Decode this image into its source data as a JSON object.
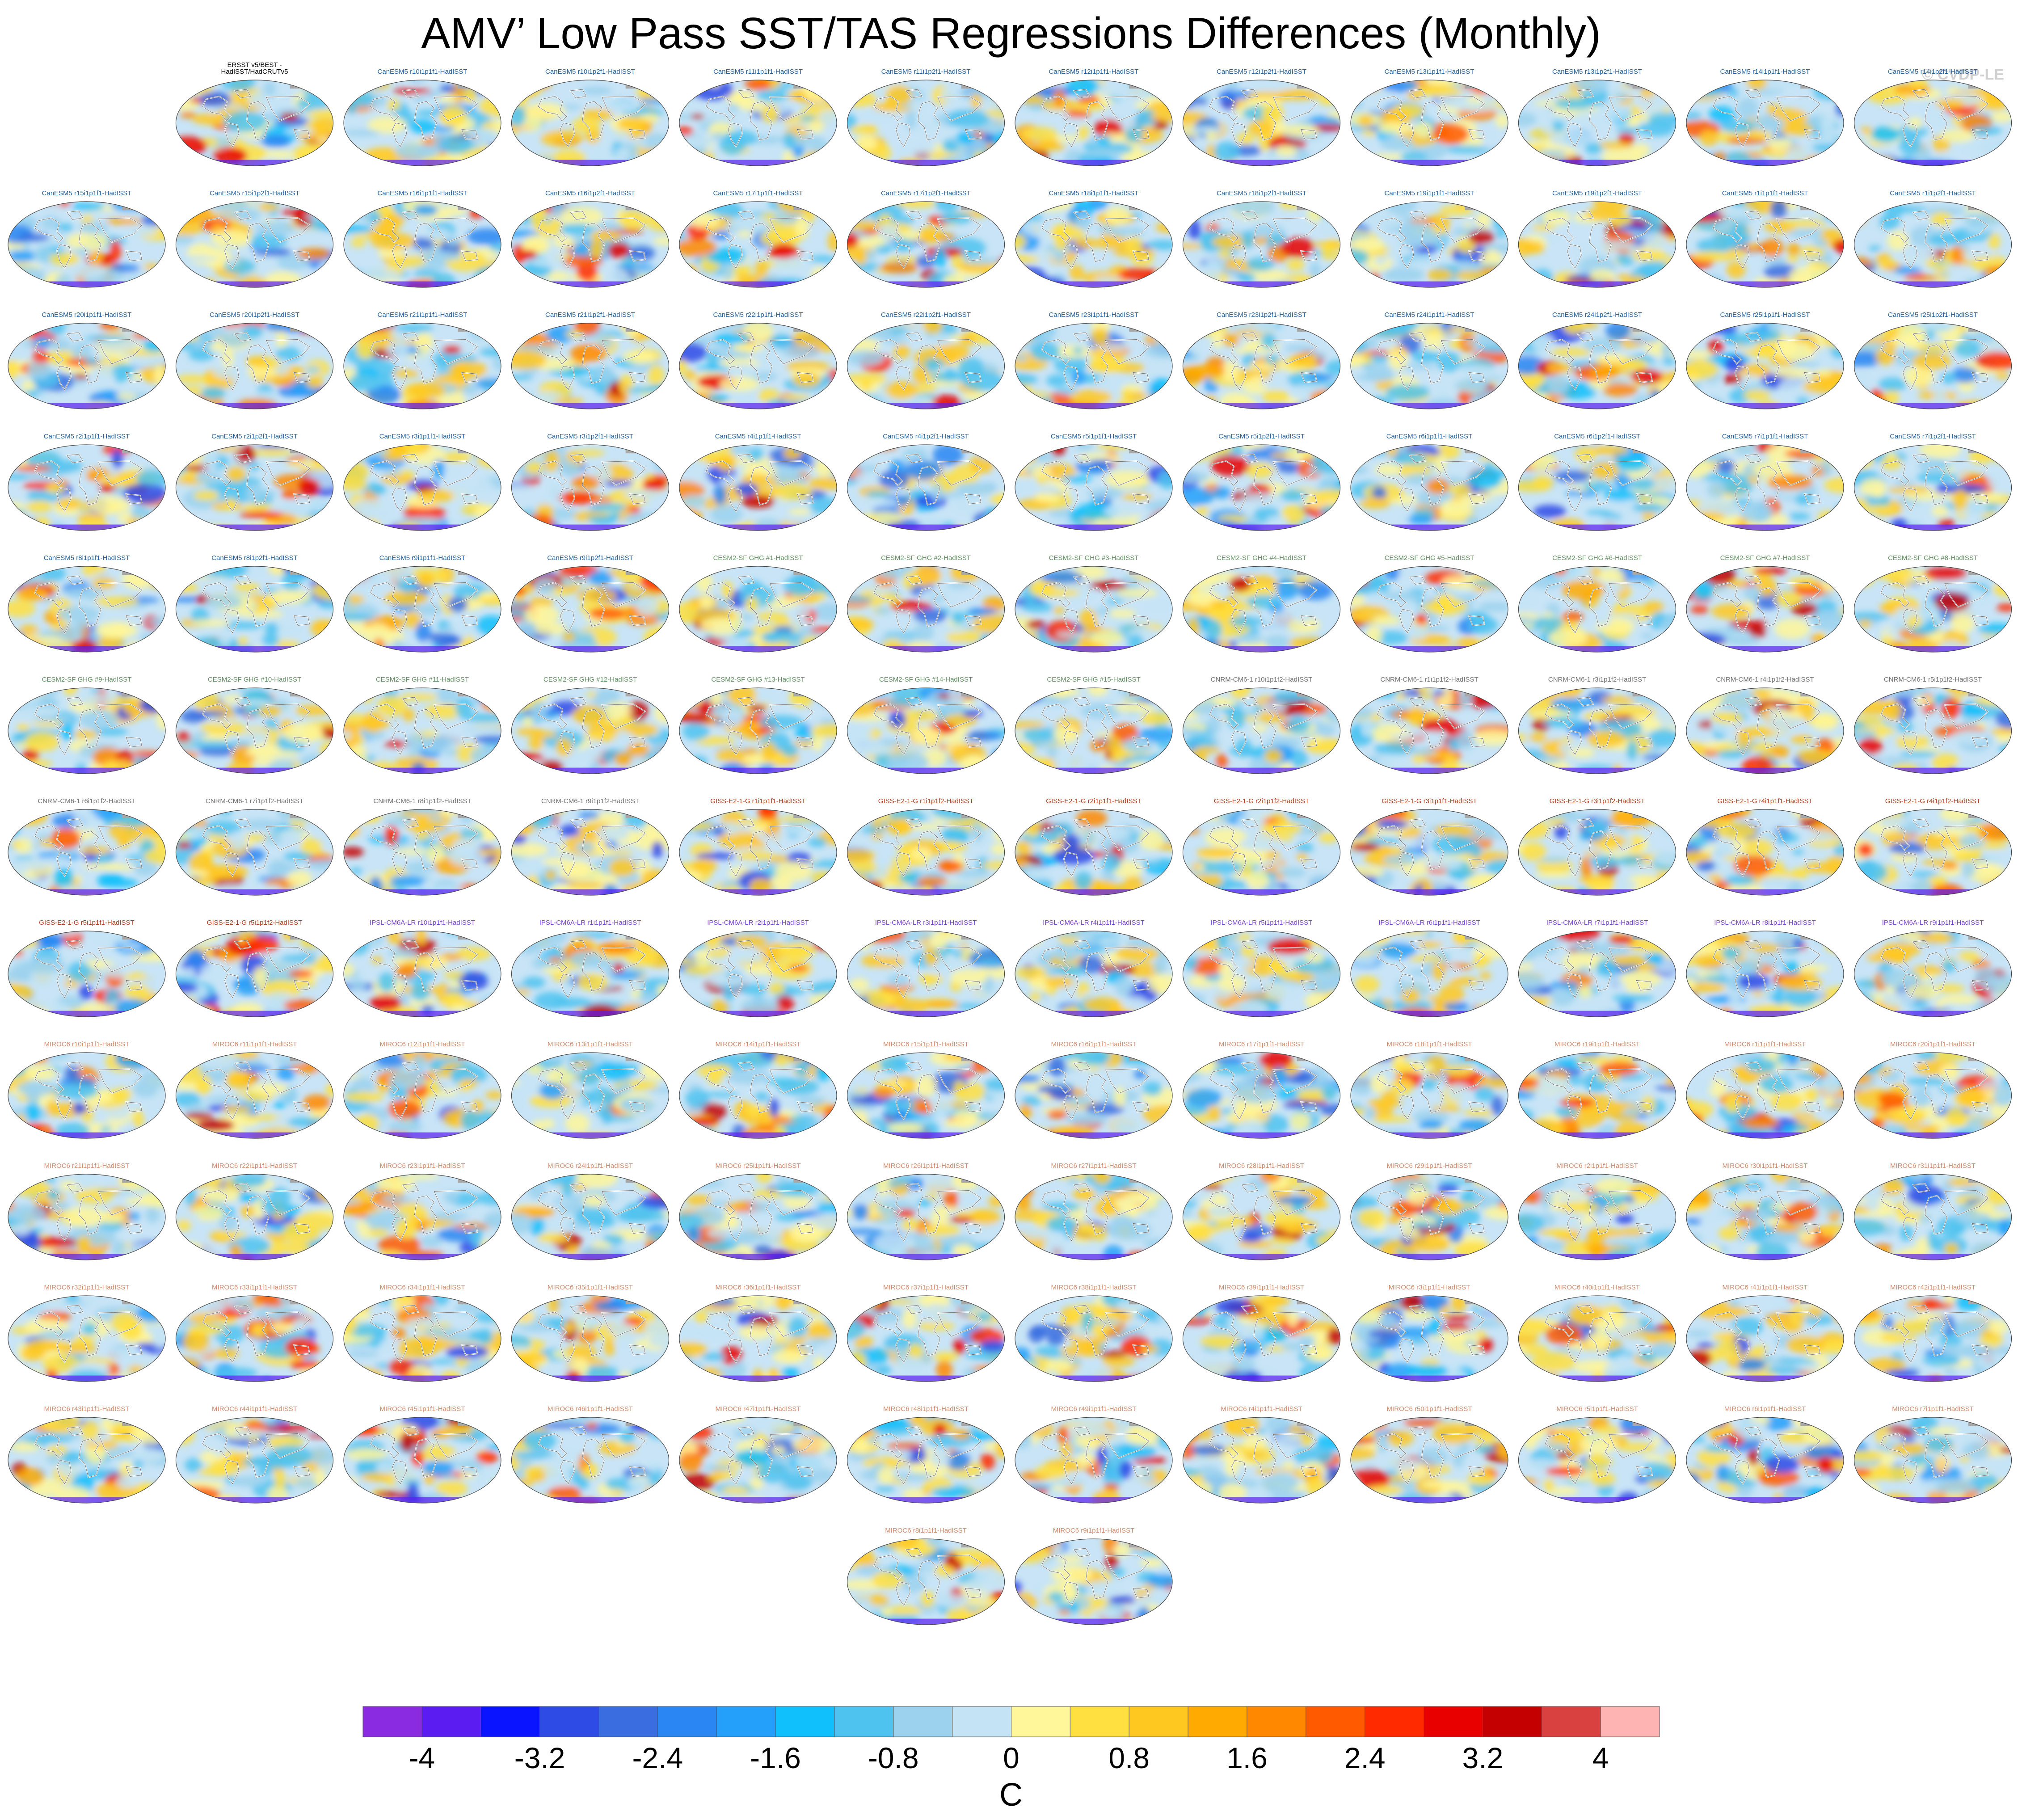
{
  "title": "AMV’ Low Pass SST/TAS Regressions Differences (Monthly)",
  "credit": "© CVDP-LE",
  "chart_data": {
    "type": "heatmap",
    "description_kind": "grid of global map panels",
    "panels": [
      {
        "title": "ERSST v5/BEST -\nHadISST/HadCRUTv5",
        "group": "obs"
      },
      {
        "title": "CanESM5 r10i1p1f1-HadISST",
        "group": "CanESM5"
      },
      {
        "title": "CanESM5 r10i1p2f1-HadISST",
        "group": "CanESM5"
      },
      {
        "title": "CanESM5 r11i1p1f1-HadISST",
        "group": "CanESM5"
      },
      {
        "title": "CanESM5 r11i1p2f1-HadISST",
        "group": "CanESM5"
      },
      {
        "title": "CanESM5 r12i1p1f1-HadISST",
        "group": "CanESM5"
      },
      {
        "title": "CanESM5 r12i1p2f1-HadISST",
        "group": "CanESM5"
      },
      {
        "title": "CanESM5 r13i1p1f1-HadISST",
        "group": "CanESM5"
      },
      {
        "title": "CanESM5 r13i1p2f1-HadISST",
        "group": "CanESM5"
      },
      {
        "title": "CanESM5 r14i1p1f1-HadISST",
        "group": "CanESM5"
      },
      {
        "title": "CanESM5 r14i1p2f1-HadISST",
        "group": "CanESM5"
      },
      {
        "title": "CanESM5 r15i1p1f1-HadISST",
        "group": "CanESM5"
      },
      {
        "title": "CanESM5 r15i1p2f1-HadISST",
        "group": "CanESM5"
      },
      {
        "title": "CanESM5 r16i1p1f1-HadISST",
        "group": "CanESM5"
      },
      {
        "title": "CanESM5 r16i1p2f1-HadISST",
        "group": "CanESM5"
      },
      {
        "title": "CanESM5 r17i1p1f1-HadISST",
        "group": "CanESM5"
      },
      {
        "title": "CanESM5 r17i1p2f1-HadISST",
        "group": "CanESM5"
      },
      {
        "title": "CanESM5 r18i1p1f1-HadISST",
        "group": "CanESM5"
      },
      {
        "title": "CanESM5 r18i1p2f1-HadISST",
        "group": "CanESM5"
      },
      {
        "title": "CanESM5 r19i1p1f1-HadISST",
        "group": "CanESM5"
      },
      {
        "title": "CanESM5 r19i1p2f1-HadISST",
        "group": "CanESM5"
      },
      {
        "title": "CanESM5 r1i1p1f1-HadISST",
        "group": "CanESM5"
      },
      {
        "title": "CanESM5 r1i1p2f1-HadISST",
        "group": "CanESM5"
      },
      {
        "title": "CanESM5 r20i1p1f1-HadISST",
        "group": "CanESM5"
      },
      {
        "title": "CanESM5 r20i1p2f1-HadISST",
        "group": "CanESM5"
      },
      {
        "title": "CanESM5 r21i1p1f1-HadISST",
        "group": "CanESM5"
      },
      {
        "title": "CanESM5 r21i1p2f1-HadISST",
        "group": "CanESM5"
      },
      {
        "title": "CanESM5 r22i1p1f1-HadISST",
        "group": "CanESM5"
      },
      {
        "title": "CanESM5 r22i1p2f1-HadISST",
        "group": "CanESM5"
      },
      {
        "title": "CanESM5 r23i1p1f1-HadISST",
        "group": "CanESM5"
      },
      {
        "title": "CanESM5 r23i1p2f1-HadISST",
        "group": "CanESM5"
      },
      {
        "title": "CanESM5 r24i1p1f1-HadISST",
        "group": "CanESM5"
      },
      {
        "title": "CanESM5 r24i1p2f1-HadISST",
        "group": "CanESM5"
      },
      {
        "title": "CanESM5 r25i1p1f1-HadISST",
        "group": "CanESM5"
      },
      {
        "title": "CanESM5 r25i1p2f1-HadISST",
        "group": "CanESM5"
      },
      {
        "title": "CanESM5 r2i1p1f1-HadISST",
        "group": "CanESM5"
      },
      {
        "title": "CanESM5 r2i1p2f1-HadISST",
        "group": "CanESM5"
      },
      {
        "title": "CanESM5 r3i1p1f1-HadISST",
        "group": "CanESM5"
      },
      {
        "title": "CanESM5 r3i1p2f1-HadISST",
        "group": "CanESM5"
      },
      {
        "title": "CanESM5 r4i1p1f1-HadISST",
        "group": "CanESM5"
      },
      {
        "title": "CanESM5 r4i1p2f1-HadISST",
        "group": "CanESM5"
      },
      {
        "title": "CanESM5 r5i1p1f1-HadISST",
        "group": "CanESM5"
      },
      {
        "title": "CanESM5 r5i1p2f1-HadISST",
        "group": "CanESM5"
      },
      {
        "title": "CanESM5 r6i1p1f1-HadISST",
        "group": "CanESM5"
      },
      {
        "title": "CanESM5 r6i1p2f1-HadISST",
        "group": "CanESM5"
      },
      {
        "title": "CanESM5 r7i1p1f1-HadISST",
        "group": "CanESM5"
      },
      {
        "title": "CanESM5 r7i1p2f1-HadISST",
        "group": "CanESM5"
      },
      {
        "title": "CanESM5 r8i1p1f1-HadISST",
        "group": "CanESM5"
      },
      {
        "title": "CanESM5 r8i1p2f1-HadISST",
        "group": "CanESM5"
      },
      {
        "title": "CanESM5 r9i1p1f1-HadISST",
        "group": "CanESM5"
      },
      {
        "title": "CanESM5 r9i1p2f1-HadISST",
        "group": "CanESM5"
      },
      {
        "title": "CESM2-SF GHG #1-HadISST",
        "group": "CESM2"
      },
      {
        "title": "CESM2-SF GHG #2-HadISST",
        "group": "CESM2"
      },
      {
        "title": "CESM2-SF GHG #3-HadISST",
        "group": "CESM2"
      },
      {
        "title": "CESM2-SF GHG #4-HadISST",
        "group": "CESM2"
      },
      {
        "title": "CESM2-SF GHG #5-HadISST",
        "group": "CESM2"
      },
      {
        "title": "CESM2-SF GHG #6-HadISST",
        "group": "CESM2"
      },
      {
        "title": "CESM2-SF GHG #7-HadISST",
        "group": "CESM2"
      },
      {
        "title": "CESM2-SF GHG #8-HadISST",
        "group": "CESM2"
      },
      {
        "title": "CESM2-SF GHG #9-HadISST",
        "group": "CESM2"
      },
      {
        "title": "CESM2-SF GHG #10-HadISST",
        "group": "CESM2"
      },
      {
        "title": "CESM2-SF GHG #11-HadISST",
        "group": "CESM2"
      },
      {
        "title": "CESM2-SF GHG #12-HadISST",
        "group": "CESM2"
      },
      {
        "title": "CESM2-SF GHG #13-HadISST",
        "group": "CESM2"
      },
      {
        "title": "CESM2-SF GHG #14-HadISST",
        "group": "CESM2"
      },
      {
        "title": "CESM2-SF GHG #15-HadISST",
        "group": "CESM2"
      },
      {
        "title": "CNRM-CM6-1 r10i1p1f2-HadISST",
        "group": "CNRM"
      },
      {
        "title": "CNRM-CM6-1 r1i1p1f2-HadISST",
        "group": "CNRM"
      },
      {
        "title": "CNRM-CM6-1 r3i1p1f2-HadISST",
        "group": "CNRM"
      },
      {
        "title": "CNRM-CM6-1 r4i1p1f2-HadISST",
        "group": "CNRM"
      },
      {
        "title": "CNRM-CM6-1 r5i1p1f2-HadISST",
        "group": "CNRM"
      },
      {
        "title": "CNRM-CM6-1 r6i1p1f2-HadISST",
        "group": "CNRM"
      },
      {
        "title": "CNRM-CM6-1 r7i1p1f2-HadISST",
        "group": "CNRM"
      },
      {
        "title": "CNRM-CM6-1 r8i1p1f2-HadISST",
        "group": "CNRM"
      },
      {
        "title": "CNRM-CM6-1 r9i1p1f2-HadISST",
        "group": "CNRM"
      },
      {
        "title": "GISS-E2-1-G r1i1p1f1-HadISST",
        "group": "GISS"
      },
      {
        "title": "GISS-E2-1-G r1i1p1f2-HadISST",
        "group": "GISS"
      },
      {
        "title": "GISS-E2-1-G r2i1p1f1-HadISST",
        "group": "GISS"
      },
      {
        "title": "GISS-E2-1-G r2i1p1f2-HadISST",
        "group": "GISS"
      },
      {
        "title": "GISS-E2-1-G r3i1p1f1-HadISST",
        "group": "GISS"
      },
      {
        "title": "GISS-E2-1-G r3i1p1f2-HadISST",
        "group": "GISS"
      },
      {
        "title": "GISS-E2-1-G r4i1p1f1-HadISST",
        "group": "GISS"
      },
      {
        "title": "GISS-E2-1-G r4i1p1f2-HadISST",
        "group": "GISS"
      },
      {
        "title": "GISS-E2-1-G r5i1p1f1-HadISST",
        "group": "GISS"
      },
      {
        "title": "GISS-E2-1-G r5i1p1f2-HadISST",
        "group": "GISS"
      },
      {
        "title": "IPSL-CM6A-LR r10i1p1f1-HadISST",
        "group": "IPSL"
      },
      {
        "title": "IPSL-CM6A-LR r1i1p1f1-HadISST",
        "group": "IPSL"
      },
      {
        "title": "IPSL-CM6A-LR r2i1p1f1-HadISST",
        "group": "IPSL"
      },
      {
        "title": "IPSL-CM6A-LR r3i1p1f1-HadISST",
        "group": "IPSL"
      },
      {
        "title": "IPSL-CM6A-LR r4i1p1f1-HadISST",
        "group": "IPSL"
      },
      {
        "title": "IPSL-CM6A-LR r5i1p1f1-HadISST",
        "group": "IPSL"
      },
      {
        "title": "IPSL-CM6A-LR r6i1p1f1-HadISST",
        "group": "IPSL"
      },
      {
        "title": "IPSL-CM6A-LR r7i1p1f1-HadISST",
        "group": "IPSL"
      },
      {
        "title": "IPSL-CM6A-LR r8i1p1f1-HadISST",
        "group": "IPSL"
      },
      {
        "title": "IPSL-CM6A-LR r9i1p1f1-HadISST",
        "group": "IPSL"
      },
      {
        "title": "MIROC6 r10i1p1f1-HadISST",
        "group": "MIROC6"
      },
      {
        "title": "MIROC6 r11i1p1f1-HadISST",
        "group": "MIROC6"
      },
      {
        "title": "MIROC6 r12i1p1f1-HadISST",
        "group": "MIROC6"
      },
      {
        "title": "MIROC6 r13i1p1f1-HadISST",
        "group": "MIROC6"
      },
      {
        "title": "MIROC6 r14i1p1f1-HadISST",
        "group": "MIROC6"
      },
      {
        "title": "MIROC6 r15i1p1f1-HadISST",
        "group": "MIROC6"
      },
      {
        "title": "MIROC6 r16i1p1f1-HadISST",
        "group": "MIROC6"
      },
      {
        "title": "MIROC6 r17i1p1f1-HadISST",
        "group": "MIROC6"
      },
      {
        "title": "MIROC6 r18i1p1f1-HadISST",
        "group": "MIROC6"
      },
      {
        "title": "MIROC6 r19i1p1f1-HadISST",
        "group": "MIROC6"
      },
      {
        "title": "MIROC6 r1i1p1f1-HadISST",
        "group": "MIROC6"
      },
      {
        "title": "MIROC6 r20i1p1f1-HadISST",
        "group": "MIROC6"
      },
      {
        "title": "MIROC6 r21i1p1f1-HadISST",
        "group": "MIROC6"
      },
      {
        "title": "MIROC6 r22i1p1f1-HadISST",
        "group": "MIROC6"
      },
      {
        "title": "MIROC6 r23i1p1f1-HadISST",
        "group": "MIROC6"
      },
      {
        "title": "MIROC6 r24i1p1f1-HadISST",
        "group": "MIROC6"
      },
      {
        "title": "MIROC6 r25i1p1f1-HadISST",
        "group": "MIROC6"
      },
      {
        "title": "MIROC6 r26i1p1f1-HadISST",
        "group": "MIROC6"
      },
      {
        "title": "MIROC6 r27i1p1f1-HadISST",
        "group": "MIROC6"
      },
      {
        "title": "MIROC6 r28i1p1f1-HadISST",
        "group": "MIROC6"
      },
      {
        "title": "MIROC6 r29i1p1f1-HadISST",
        "group": "MIROC6"
      },
      {
        "title": "MIROC6 r2i1p1f1-HadISST",
        "group": "MIROC6"
      },
      {
        "title": "MIROC6 r30i1p1f1-HadISST",
        "group": "MIROC6"
      },
      {
        "title": "MIROC6 r31i1p1f1-HadISST",
        "group": "MIROC6"
      },
      {
        "title": "MIROC6 r32i1p1f1-HadISST",
        "group": "MIROC6"
      },
      {
        "title": "MIROC6 r33i1p1f1-HadISST",
        "group": "MIROC6"
      },
      {
        "title": "MIROC6 r34i1p1f1-HadISST",
        "group": "MIROC6"
      },
      {
        "title": "MIROC6 r35i1p1f1-HadISST",
        "group": "MIROC6"
      },
      {
        "title": "MIROC6 r36i1p1f1-HadISST",
        "group": "MIROC6"
      },
      {
        "title": "MIROC6 r37i1p1f1-HadISST",
        "group": "MIROC6"
      },
      {
        "title": "MIROC6 r38i1p1f1-HadISST",
        "group": "MIROC6"
      },
      {
        "title": "MIROC6 r39i1p1f1-HadISST",
        "group": "MIROC6"
      },
      {
        "title": "MIROC6 r3i1p1f1-HadISST",
        "group": "MIROC6"
      },
      {
        "title": "MIROC6 r40i1p1f1-HadISST",
        "group": "MIROC6"
      },
      {
        "title": "MIROC6 r41i1p1f1-HadISST",
        "group": "MIROC6"
      },
      {
        "title": "MIROC6 r42i1p1f1-HadISST",
        "group": "MIROC6"
      },
      {
        "title": "MIROC6 r43i1p1f1-HadISST",
        "group": "MIROC6"
      },
      {
        "title": "MIROC6 r44i1p1f1-HadISST",
        "group": "MIROC6"
      },
      {
        "title": "MIROC6 r45i1p1f1-HadISST",
        "group": "MIROC6"
      },
      {
        "title": "MIROC6 r46i1p1f1-HadISST",
        "group": "MIROC6"
      },
      {
        "title": "MIROC6 r47i1p1f1-HadISST",
        "group": "MIROC6"
      },
      {
        "title": "MIROC6 r48i1p1f1-HadISST",
        "group": "MIROC6"
      },
      {
        "title": "MIROC6 r49i1p1f1-HadISST",
        "group": "MIROC6"
      },
      {
        "title": "MIROC6 r4i1p1f1-HadISST",
        "group": "MIROC6"
      },
      {
        "title": "MIROC6 r50i1p1f1-HadISST",
        "group": "MIROC6"
      },
      {
        "title": "MIROC6 r5i1p1f1-HadISST",
        "group": "MIROC6"
      },
      {
        "title": "MIROC6 r6i1p1f1-HadISST",
        "group": "MIROC6"
      },
      {
        "title": "MIROC6 r7i1p1f1-HadISST",
        "group": "MIROC6"
      },
      {
        "title": "MIROC6 r8i1p1f1-HadISST",
        "group": "MIROC6"
      },
      {
        "title": "MIROC6 r9i1p1f1-HadISST",
        "group": "MIROC6"
      }
    ],
    "group_colors": {
      "obs": "#000000",
      "CanESM5": "#1f5f9e",
      "CESM2": "#5f8f5f",
      "CNRM": "#707070",
      "GISS": "#b03a1a",
      "IPSL": "#7a3fd6",
      "MIROC6": "#d08a6a"
    },
    "colorbar": {
      "colors": [
        "#8a2be2",
        "#5a1cf0",
        "#0a14ff",
        "#2e4be6",
        "#3a6ee0",
        "#2a86f2",
        "#24a0fa",
        "#10c0fc",
        "#4fc3f0",
        "#9cd2ee",
        "#c4e4f6",
        "#fff79a",
        "#ffe040",
        "#ffc820",
        "#ffaa00",
        "#ff8800",
        "#ff5a00",
        "#ff2a00",
        "#e80000",
        "#c40000",
        "#d94040",
        "#ffb4b4"
      ],
      "ticks": [
        "-4",
        "-3.2",
        "-2.4",
        "-1.6",
        "-0.8",
        "0",
        "0.8",
        "1.6",
        "2.4",
        "3.2",
        "4"
      ],
      "tick_values": [
        -4,
        -3.2,
        -2.4,
        -1.6,
        -0.8,
        0,
        0.8,
        1.6,
        2.4,
        3.2,
        4
      ],
      "range": [
        -4.4,
        4.4
      ],
      "units": "C"
    }
  }
}
